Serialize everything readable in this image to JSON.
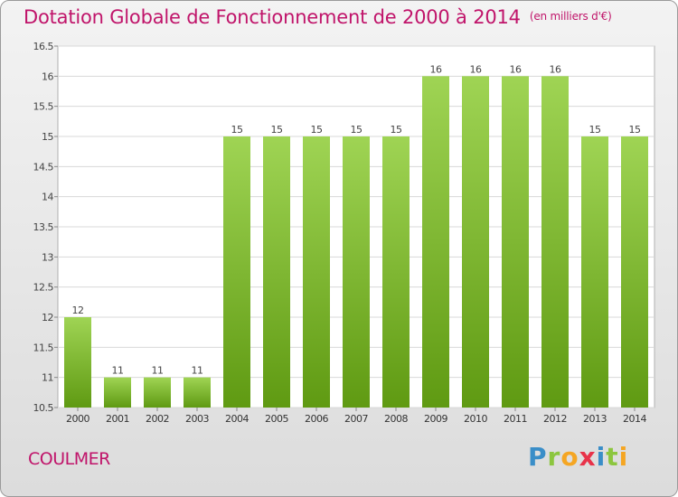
{
  "header": {
    "title": "Dotation Globale de Fonctionnement de 2000 à 2014",
    "unit": "(en milliers d'€)"
  },
  "footer": {
    "commune": "COULMER",
    "logo_letters": [
      "P",
      "r",
      "o",
      "x",
      "i",
      "t",
      "i"
    ]
  },
  "colors": {
    "accent": "#c0146a",
    "bar_top": "#9fd454",
    "bar_bottom": "#5f9a12"
  },
  "chart_data": {
    "type": "bar",
    "title": "Dotation Globale de Fonctionnement de 2000 à 2014",
    "xlabel": "",
    "ylabel": "",
    "categories": [
      "2000",
      "2001",
      "2002",
      "2003",
      "2004",
      "2005",
      "2006",
      "2007",
      "2008",
      "2009",
      "2010",
      "2011",
      "2012",
      "2013",
      "2014"
    ],
    "values": [
      12,
      11,
      11,
      11,
      15,
      15,
      15,
      15,
      15,
      16,
      16,
      16,
      16,
      15,
      15
    ],
    "data_labels": [
      "12",
      "11",
      "11",
      "11",
      "15",
      "15",
      "15",
      "15",
      "15",
      "16",
      "16",
      "16",
      "16",
      "15",
      "15"
    ],
    "ylim": [
      10.5,
      16.5
    ],
    "yticks": [
      10.5,
      11,
      11.5,
      12,
      12.5,
      13,
      13.5,
      14,
      14.5,
      15,
      15.5,
      16,
      16.5
    ],
    "ytick_labels": [
      "10.5",
      "11",
      "11.5",
      "12",
      "12.5",
      "13",
      "13.5",
      "14",
      "14.5",
      "15",
      "15.5",
      "16",
      "16.5"
    ],
    "grid": true
  }
}
